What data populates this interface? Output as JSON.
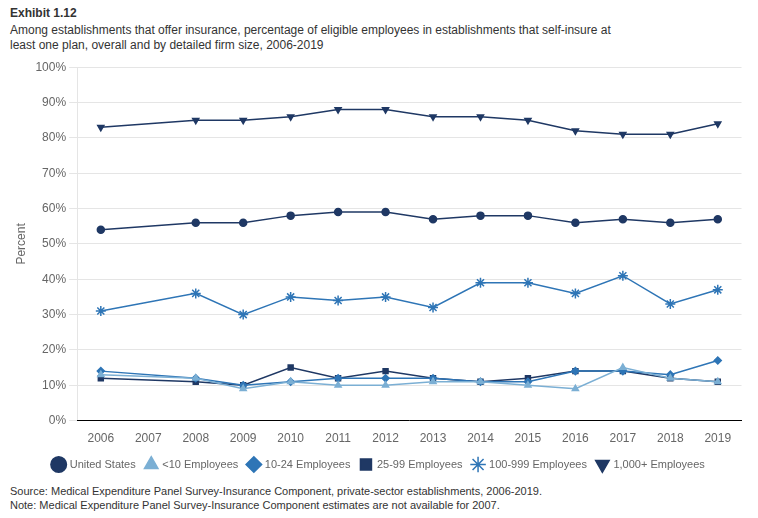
{
  "chart_data": {
    "type": "line",
    "title": "Exhibit 1.12",
    "subtitle": "Among establishments that offer insurance, percentage of eligible employees in establishments that self-insure at\nleast one plan, overall and by detailed firm size, 2006-2019",
    "ylabel": "Percent",
    "annotations": [
      "Source: Medical Expenditure Panel Survey-Insurance Component, private-sector establishments, 2006-2019.",
      "Note: Medical Expenditure Panel Survey-Insurance Component estimates are not available for 2007."
    ],
    "x": [
      2006,
      2008,
      2009,
      2010,
      2011,
      2012,
      2013,
      2014,
      2015,
      2016,
      2017,
      2018,
      2019
    ],
    "series": [
      {
        "name": "United States",
        "color": "#1f3864",
        "marker": "circle",
        "line_style": "solid",
        "values": [
          54,
          56,
          56,
          58,
          59,
          59,
          57,
          58,
          58,
          56,
          57,
          56,
          57
        ]
      },
      {
        "name": "<10 Employees",
        "color": "#7bafd4",
        "marker": "triangle",
        "line_style": "solid",
        "values": [
          13,
          12,
          9,
          11,
          10,
          10,
          11,
          11,
          10,
          9,
          15,
          12,
          11
        ]
      },
      {
        "name": "10-24 Employees",
        "color": "#2e75b6",
        "marker": "diamond",
        "line_style": "solid",
        "values": [
          14,
          12,
          10,
          11,
          12,
          12,
          12,
          11,
          11,
          14,
          14,
          13,
          17
        ]
      },
      {
        "name": "25-99 Employees",
        "color": "#1f3864",
        "marker": "square",
        "line_style": "solid",
        "values": [
          12,
          11,
          10,
          15,
          12,
          14,
          12,
          11,
          12,
          14,
          14,
          12,
          11
        ]
      },
      {
        "name": "100-999 Employees",
        "color": "#2e75b6",
        "marker": "star",
        "line_style": "solid",
        "values": [
          31,
          36,
          30,
          35,
          34,
          35,
          32,
          39,
          39,
          36,
          41,
          33,
          37
        ]
      },
      {
        "name": "1,000+ Employees",
        "color": "#1f3864",
        "marker": "triangle_down",
        "line_style": "solid",
        "values": [
          83,
          85,
          85,
          86,
          88,
          88,
          86,
          86,
          85,
          82,
          81,
          81,
          84
        ]
      }
    ],
    "xlim": [
      2005.5,
      2019.5
    ],
    "xticks": [
      2006,
      2007,
      2008,
      2009,
      2010,
      2011,
      2012,
      2013,
      2014,
      2015,
      2016,
      2017,
      2018,
      2019
    ],
    "ylim": [
      0,
      100
    ],
    "yticks": [
      {
        "value": 0,
        "label": "0%"
      },
      {
        "value": 10,
        "label": "10%"
      },
      {
        "value": 20,
        "label": "20%"
      },
      {
        "value": 30,
        "label": "30%"
      },
      {
        "value": 40,
        "label": "40%"
      },
      {
        "value": 50,
        "label": "50%"
      },
      {
        "value": 60,
        "label": "60%"
      },
      {
        "value": 70,
        "label": "70%"
      },
      {
        "value": 80,
        "label": "80%"
      },
      {
        "value": 90,
        "label": "90%"
      },
      {
        "value": 100,
        "label": "100%"
      }
    ],
    "grid": "y",
    "legend": "bottom"
  }
}
